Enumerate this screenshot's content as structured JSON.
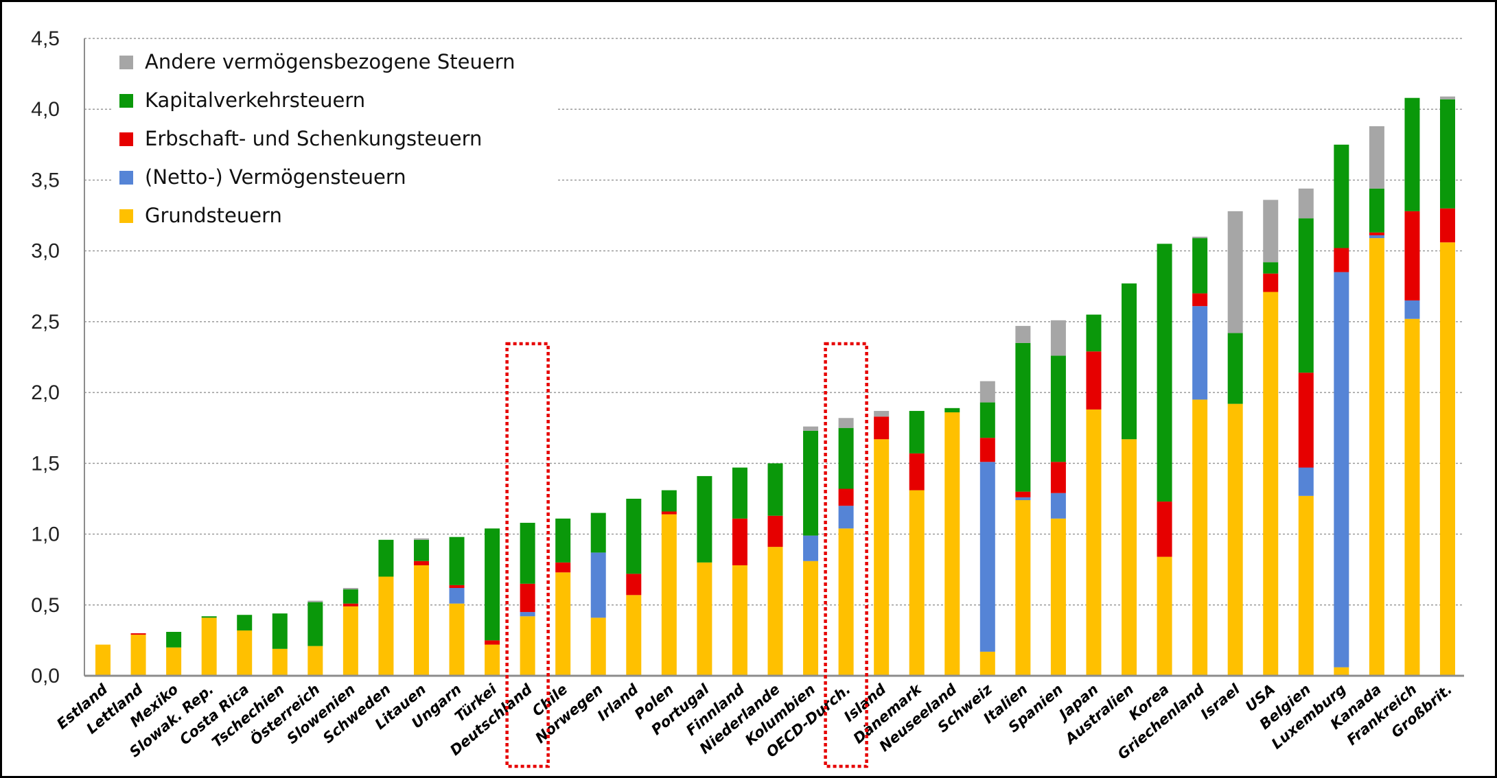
{
  "chart_data": {
    "type": "bar",
    "stacked": true,
    "title": "",
    "xlabel": "",
    "ylabel": "",
    "ylim": [
      0,
      4.5
    ],
    "yticks": [
      "0,0",
      "0,5",
      "1,0",
      "1,5",
      "2,0",
      "2,5",
      "3,0",
      "3,5",
      "4,0",
      "4,5"
    ],
    "grid": true,
    "legend_position": "top-left",
    "categories": [
      "Estland",
      "Lettland",
      "Mexiko",
      "Slowak. Rep.",
      "Costa Rica",
      "Tschechien",
      "Österreich",
      "Slowenien",
      "Schweden",
      "Litauen",
      "Ungarn",
      "Türkei",
      "Deutschland",
      "Chile",
      "Norwegen",
      "Irland",
      "Polen",
      "Portugal",
      "Finnland",
      "Niederlande",
      "Kolumbien",
      "OECD-Durch.",
      "Island",
      "Dänemark",
      "Neuseeland",
      "Schweiz",
      "Italien",
      "Spanien",
      "Japan",
      "Australien",
      "Korea",
      "Griechenland",
      "Israel",
      "USA",
      "Belgien",
      "Luxemburg",
      "Kanada",
      "Frankreich",
      "Großbrit."
    ],
    "highlighted": [
      "Deutschland",
      "OECD-Durch."
    ],
    "series": [
      {
        "name": "Grundsteuern",
        "color": "#FFC000",
        "values": [
          0.22,
          0.29,
          0.2,
          0.41,
          0.32,
          0.19,
          0.21,
          0.49,
          0.7,
          0.78,
          0.51,
          0.22,
          0.42,
          0.73,
          0.41,
          0.57,
          1.14,
          0.8,
          0.78,
          0.91,
          0.81,
          1.04,
          1.67,
          1.31,
          1.86,
          0.17,
          1.24,
          1.11,
          1.88,
          1.67,
          0.84,
          1.95,
          1.92,
          2.71,
          1.27,
          0.06,
          3.09,
          2.52,
          3.06
        ]
      },
      {
        "name": "(Netto-) Vermögensteuern",
        "color": "#5584D6",
        "values": [
          0,
          0,
          0,
          0,
          0,
          0,
          0,
          0,
          0,
          0,
          0.11,
          0,
          0.03,
          0,
          0.46,
          0,
          0,
          0,
          0,
          0,
          0.18,
          0.16,
          0,
          0,
          0,
          1.34,
          0.02,
          0.18,
          0,
          0,
          0,
          0.66,
          0,
          0,
          0.2,
          2.79,
          0.02,
          0.13,
          0
        ]
      },
      {
        "name": "Erbschaft- und Schenkungsteuern",
        "color": "#E60000",
        "values": [
          0,
          0.01,
          0,
          0,
          0,
          0,
          0,
          0.02,
          0,
          0.03,
          0.02,
          0.03,
          0.2,
          0.07,
          0,
          0.15,
          0.02,
          0,
          0.33,
          0.22,
          0,
          0.12,
          0.16,
          0.26,
          0,
          0.17,
          0.04,
          0.22,
          0.41,
          0,
          0.39,
          0.09,
          0,
          0.13,
          0.67,
          0.17,
          0.02,
          0.63,
          0.24
        ]
      },
      {
        "name": "Kapitalverkehrsteuern",
        "color": "#0A980A",
        "values": [
          0,
          0,
          0.11,
          0.01,
          0.11,
          0.25,
          0.31,
          0.1,
          0.26,
          0.15,
          0.34,
          0.79,
          0.43,
          0.31,
          0.28,
          0.53,
          0.15,
          0.61,
          0.36,
          0.37,
          0.74,
          0.43,
          0,
          0.3,
          0.03,
          0.25,
          1.05,
          0.75,
          0.26,
          1.1,
          1.82,
          0.39,
          0.5,
          0.08,
          1.09,
          0.73,
          0.31,
          0.8,
          0.77
        ]
      },
      {
        "name": "Andere vermögensbezogene Steuern",
        "color": "#A6A6A6",
        "values": [
          0,
          0,
          0,
          0,
          0,
          0,
          0.01,
          0.01,
          0,
          0.01,
          0,
          0,
          0,
          0,
          0,
          0,
          0,
          0,
          0,
          0,
          0.03,
          0.07,
          0.04,
          0,
          0,
          0.15,
          0.12,
          0.25,
          0,
          0,
          0,
          0.01,
          0.86,
          0.44,
          0.21,
          0,
          0.44,
          0,
          0.02
        ]
      }
    ],
    "legend_order": [
      "Andere vermögensbezogene Steuern",
      "Kapitalverkehrsteuern",
      "Erbschaft- und Schenkungsteuern",
      "(Netto-) Vermögensteuern",
      "Grundsteuern"
    ]
  }
}
